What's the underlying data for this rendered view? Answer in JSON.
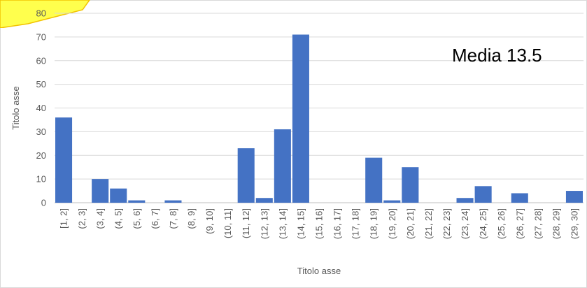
{
  "chart_data": {
    "type": "bar",
    "categories": [
      "[1, 2]",
      "(2, 3]",
      "(3, 4]",
      "(4, 5]",
      "(5, 6]",
      "(6, 7]",
      "(7, 8]",
      "(8, 9]",
      "(9, 10]",
      "(10, 11]",
      "(11, 12]",
      "(12, 13]",
      "(13, 14]",
      "(14, 15]",
      "(15, 16]",
      "(16, 17]",
      "(17, 18]",
      "(18, 19]",
      "(19, 20]",
      "(20, 21]",
      "(21, 22]",
      "(22, 23]",
      "(23, 24]",
      "(24, 25]",
      "(25, 26]",
      "(26, 27]",
      "(27, 28]",
      "(28, 29]",
      "(29, 30]"
    ],
    "values": [
      36,
      0,
      10,
      6,
      1,
      0,
      1,
      0,
      0,
      0,
      23,
      2,
      31,
      71,
      0,
      0,
      0,
      19,
      1,
      15,
      0,
      0,
      2,
      7,
      0,
      4,
      0,
      0,
      5
    ],
    "xlabel": "Titolo asse",
    "ylabel": "Titolo asse",
    "ylim": [
      0,
      80
    ],
    "yticks": [
      0,
      10,
      20,
      30,
      40,
      50,
      60,
      70,
      80
    ],
    "grid": true,
    "bar_color": "#4472c4",
    "annotation": "Media 13.5"
  },
  "highlight_color": "#ffff4d"
}
